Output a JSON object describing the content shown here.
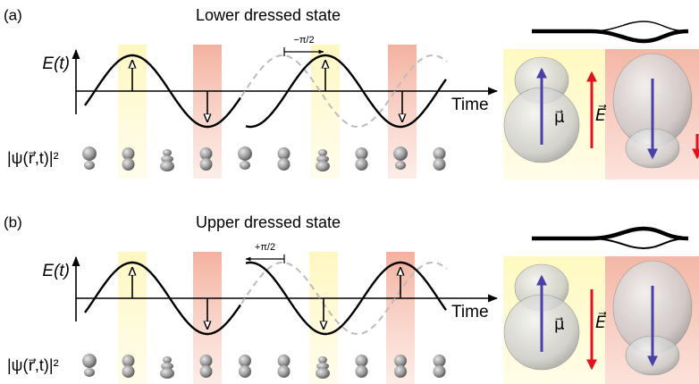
{
  "panels": [
    {
      "label": "(a)",
      "title": "Lower dressed state",
      "y_label": "E(t)",
      "x_label": "Time",
      "psi_label": "|ψ(r⃗,t)|²",
      "phase_label": "−π/2",
      "mu_label": "μ⃗",
      "field_label": "E⃗"
    },
    {
      "label": "(b)",
      "title": "Upper dressed state",
      "y_label": "E(t)",
      "x_label": "Time",
      "psi_label": "|ψ(r⃗,t)|²",
      "phase_label": "+π/2",
      "mu_label": "μ⃗",
      "field_label": "E⃗"
    }
  ]
}
